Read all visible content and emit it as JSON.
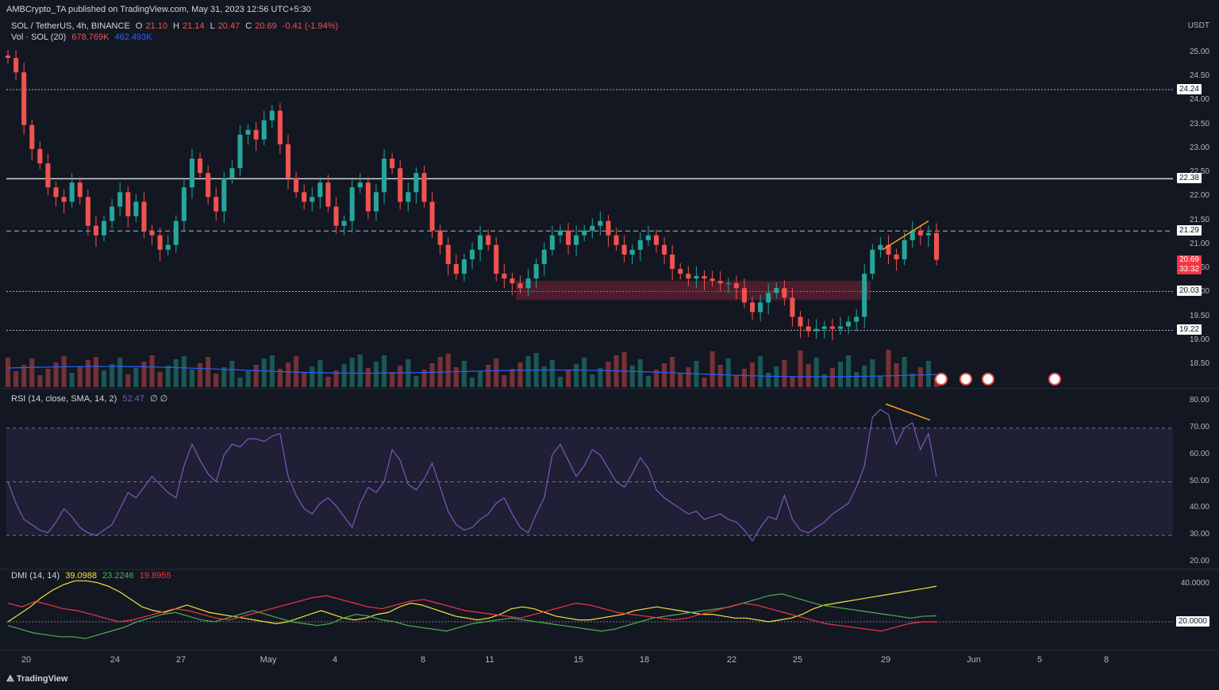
{
  "header": {
    "publisher": "AMBCrypto_TA published on TradingView.com, May 31, 2023 12:56 UTC+5:30"
  },
  "legend": {
    "symbol": "SOL / TetherUS, 4h, BINANCE",
    "o_label": "O",
    "o": "21.10",
    "h_label": "H",
    "h": "21.14",
    "l_label": "L",
    "l": "20.47",
    "c_label": "C",
    "c": "20.69",
    "change": "-0.41 (-1.94%)",
    "vol_label": "Vol · SOL (20)",
    "vol_value": "678.769K",
    "vol_ma": "462.493K"
  },
  "rsi_legend": {
    "label": "RSI (14, close, SMA, 14, 2)",
    "value": "52.47",
    "extra": "∅ ∅"
  },
  "dmi_legend": {
    "label": "DMI (14, 14)",
    "adx": "39.0988",
    "plus": "23.2246",
    "minus": "19.8955"
  },
  "price_axis": {
    "currency": "USDT",
    "ticks": [
      "25.00",
      "24.50",
      "24.00",
      "23.50",
      "23.00",
      "22.50",
      "22.00",
      "21.50",
      "21.00",
      "20.50",
      "20.00",
      "19.50",
      "19.00",
      "18.50"
    ],
    "tag_levels": [
      "24.24",
      "22.38",
      "21.29",
      "20.03",
      "19.22"
    ],
    "current_price": "20.69",
    "countdown": "33:32"
  },
  "rsi_axis": {
    "ticks": [
      "80.00",
      "70.00",
      "60.00",
      "50.00",
      "40.00",
      "30.00",
      "20.00"
    ]
  },
  "dmi_axis": {
    "ticks": [
      "40.0000"
    ],
    "tag": "20.0000"
  },
  "time_axis": [
    "20",
    "24",
    "27",
    "May",
    "4",
    "8",
    "11",
    "15",
    "18",
    "22",
    "25",
    "29",
    "Jun",
    "5",
    "8"
  ],
  "footer": {
    "logo_text": "TradingView"
  },
  "colors": {
    "up": "#26a69a",
    "down": "#ef5350",
    "rsi": "#7e57c2",
    "vol_ma": "#2962ff",
    "adx": "#f5e33b",
    "di_plus": "#4caf50",
    "di_minus": "#f23645",
    "zone": "#7c2235",
    "trendline": "#f7a21b"
  },
  "chart_data": [
    {
      "type": "candlestick",
      "title": "SOL / TetherUS, 4h, BINANCE",
      "ylabel": "USDT",
      "ylim": [
        18.2,
        25.2
      ],
      "x": [
        "20",
        "24",
        "27",
        "May",
        "4",
        "8",
        "11",
        "15",
        "18",
        "22",
        "25",
        "29",
        "Jun",
        "5",
        "8"
      ],
      "horizontal_levels": [
        24.24,
        22.38,
        21.29,
        20.03,
        19.22
      ],
      "support_zone": [
        19.85,
        20.25
      ],
      "close_path": [
        24.9,
        24.6,
        23.5,
        23.0,
        22.7,
        22.2,
        22.0,
        21.9,
        22.3,
        22.0,
        21.4,
        21.2,
        21.5,
        21.8,
        22.1,
        21.6,
        21.9,
        21.3,
        21.2,
        20.9,
        21.0,
        21.5,
        22.2,
        22.8,
        22.5,
        22.0,
        21.7,
        22.4,
        22.6,
        23.3,
        23.4,
        23.2,
        23.6,
        23.8,
        23.1,
        22.4,
        22.1,
        21.9,
        22.0,
        22.3,
        21.8,
        21.4,
        21.5,
        22.2,
        22.3,
        21.7,
        22.1,
        22.8,
        22.6,
        21.9,
        22.1,
        22.5,
        21.9,
        21.3,
        21.0,
        20.6,
        20.4,
        20.7,
        20.9,
        21.2,
        21.0,
        20.4,
        20.3,
        20.2,
        20.1,
        20.3,
        20.6,
        20.9,
        21.2,
        21.3,
        21.0,
        21.2,
        21.3,
        21.4,
        21.5,
        21.2,
        21.0,
        20.8,
        20.9,
        21.1,
        21.2,
        21.0,
        20.8,
        20.5,
        20.4,
        20.3,
        20.35,
        20.3,
        20.25,
        20.2,
        20.2,
        20.1,
        19.8,
        19.6,
        19.8,
        20.0,
        20.1,
        19.9,
        19.5,
        19.3,
        19.2,
        19.25,
        19.3,
        19.25,
        19.3,
        19.4,
        19.5,
        20.4,
        20.9,
        21.0,
        20.8,
        20.7,
        21.1,
        21.3,
        21.2,
        21.25,
        20.69
      ]
    },
    {
      "type": "bar",
      "title": "Vol · SOL (20)",
      "last_value": 678769,
      "ma_value": 462493
    },
    {
      "type": "line",
      "title": "RSI (14, close, SMA, 14, 2)",
      "ylim": [
        20,
        80
      ],
      "bands": [
        30,
        50,
        70
      ],
      "values": [
        50,
        42,
        36,
        34,
        32,
        31,
        35,
        40,
        37,
        33,
        31,
        30,
        32,
        34,
        40,
        46,
        44,
        48,
        52,
        49,
        46,
        44,
        56,
        64,
        58,
        53,
        50,
        60,
        64,
        63,
        66,
        66,
        65,
        67,
        68,
        52,
        45,
        40,
        38,
        42,
        44,
        41,
        37,
        33,
        42,
        48,
        46,
        50,
        62,
        58,
        49,
        47,
        51,
        57,
        48,
        39,
        34,
        32,
        33,
        36,
        38,
        42,
        44,
        38,
        33,
        31,
        38,
        44,
        60,
        64,
        58,
        52,
        56,
        62,
        60,
        55,
        50,
        48,
        53,
        59,
        55,
        47,
        44,
        42,
        40,
        38,
        39,
        36,
        37,
        38,
        36,
        35,
        32,
        28,
        33,
        37,
        36,
        45,
        36,
        32,
        31,
        33,
        35,
        38,
        40,
        42,
        48,
        56,
        74,
        77,
        75,
        64,
        70,
        72,
        62,
        68,
        52
      ],
      "last_value": 52.47
    },
    {
      "type": "line",
      "title": "DMI (14, 14)",
      "series": [
        {
          "name": "ADX",
          "values": [
            20,
            24,
            28,
            33,
            37,
            40,
            42,
            42,
            41,
            39,
            36,
            32,
            28,
            26,
            25,
            27,
            29,
            27,
            25,
            24,
            23,
            22,
            21,
            20,
            19,
            20,
            22,
            24,
            26,
            24,
            22,
            21,
            22,
            24,
            25,
            28,
            30,
            29,
            27,
            25,
            23,
            22,
            21,
            22,
            24,
            27,
            28,
            27,
            25,
            23,
            22,
            21,
            21,
            22,
            23,
            24,
            26,
            27,
            28,
            27,
            26,
            25,
            24,
            24,
            23,
            22,
            22,
            21,
            20,
            21,
            22,
            24,
            27,
            29,
            30,
            31,
            32,
            33,
            34,
            35,
            36,
            37,
            38,
            39.1
          ]
        },
        {
          "name": "+DI",
          "values": [
            18,
            16,
            14,
            13,
            12,
            12,
            11,
            13,
            15,
            17,
            20,
            22,
            24,
            25,
            23,
            21,
            20,
            22,
            24,
            26,
            24,
            22,
            20,
            19,
            18,
            19,
            22,
            24,
            23,
            21,
            20,
            18,
            17,
            16,
            15,
            17,
            19,
            20,
            21,
            22,
            21,
            20,
            19,
            18,
            17,
            16,
            15,
            16,
            18,
            20,
            22,
            23,
            24,
            25,
            26,
            27,
            28,
            30,
            32,
            34,
            35,
            33,
            31,
            29,
            28,
            27,
            26,
            25,
            24,
            23,
            22,
            23,
            23.2
          ]
        },
        {
          "name": "-DI",
          "values": [
            30,
            28,
            31,
            29,
            27,
            26,
            24,
            22,
            20,
            21,
            23,
            25,
            27,
            26,
            24,
            22,
            21,
            23,
            25,
            27,
            29,
            31,
            33,
            34,
            32,
            30,
            28,
            27,
            29,
            31,
            32,
            30,
            28,
            26,
            25,
            24,
            23,
            22,
            24,
            26,
            28,
            30,
            29,
            27,
            25,
            24,
            23,
            22,
            21,
            22,
            24,
            26,
            28,
            30,
            29,
            27,
            25,
            23,
            21,
            19,
            18,
            17,
            16,
            15,
            17,
            19,
            20,
            19.9
          ]
        }
      ],
      "reference_level": 20,
      "last_values": {
        "ADX": 39.0988,
        "+DI": 23.2246,
        "-DI": 19.8955
      }
    }
  ]
}
